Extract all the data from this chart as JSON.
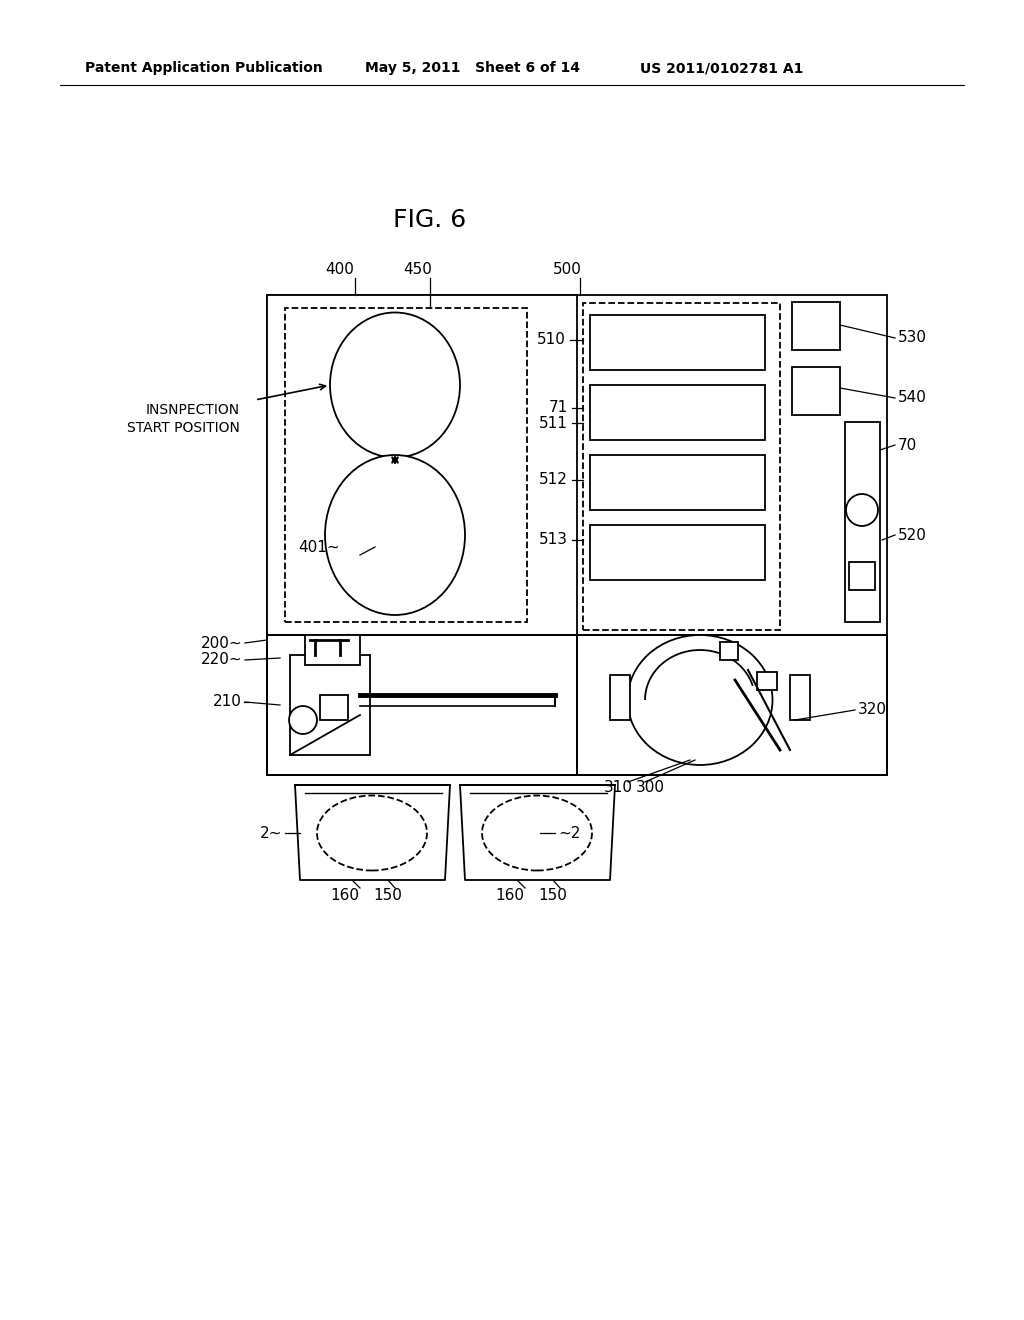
{
  "bg_color": "#ffffff",
  "line_color": "#000000",
  "header_text1": "Patent Application Publication",
  "header_text2": "May 5, 2011   Sheet 6 of 14",
  "header_text3": "US 2011/0102781 A1",
  "fig_title": "FIG. 6"
}
